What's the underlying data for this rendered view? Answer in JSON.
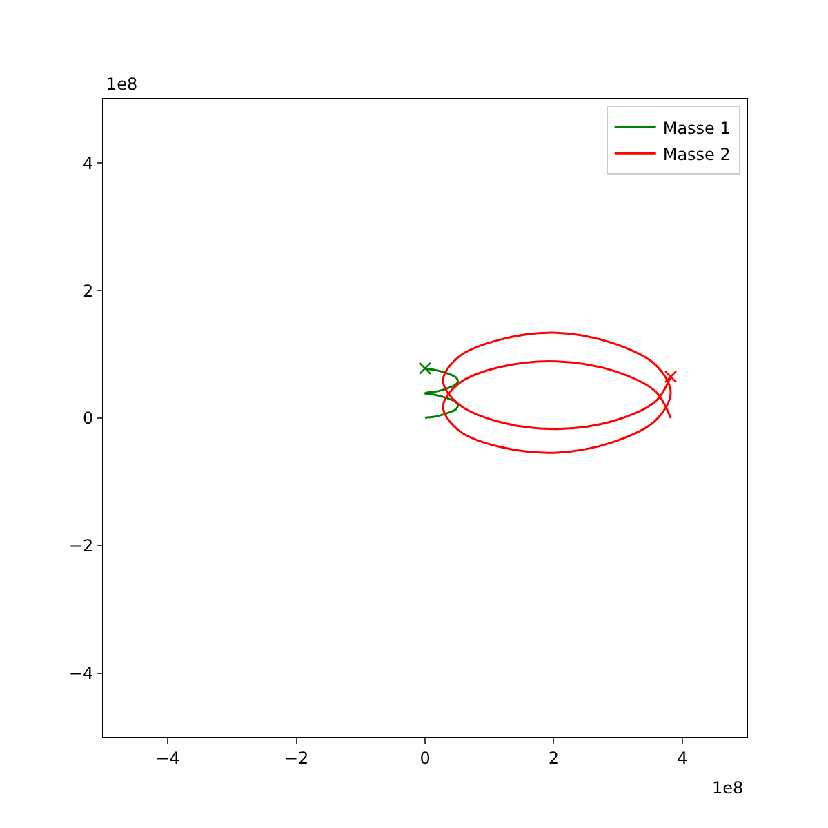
{
  "chart_data": {
    "type": "line",
    "series": [
      {
        "name": "Masse 1",
        "color": "#008000",
        "x": [
          0,
          0.03,
          0.13,
          0.26,
          0.38,
          0.48,
          0.51,
          0.48,
          0.38,
          0.26,
          0.13,
          0.03,
          0,
          0.03,
          0.13,
          0.26,
          0.38,
          0.48,
          0.51,
          0.48,
          0.38,
          0.26,
          0.13,
          0.03,
          0
        ],
        "values": [
          0,
          0.01,
          0.02,
          0.05,
          0.09,
          0.14,
          0.2,
          0.25,
          0.3,
          0.34,
          0.37,
          0.38,
          0.39,
          0.4,
          0.41,
          0.44,
          0.48,
          0.53,
          0.58,
          0.64,
          0.69,
          0.73,
          0.76,
          0.77,
          0.78
        ]
      },
      {
        "name": "Masse 2",
        "color": "#ff0000",
        "x": [
          3.82,
          3.58,
          2.94,
          2.05,
          1.16,
          0.52,
          0.28,
          0.52,
          1.16,
          2.05,
          2.94,
          3.58,
          3.82,
          3.58,
          2.94,
          2.05,
          1.16,
          0.52,
          0.28,
          0.52,
          1.16,
          2.05,
          2.94,
          3.58,
          3.82
        ],
        "values": [
          0,
          0.42,
          0.74,
          0.89,
          0.8,
          0.54,
          0.18,
          -0.19,
          -0.45,
          -0.54,
          -0.37,
          -0.04,
          0.4,
          0.84,
          1.17,
          1.34,
          1.23,
          0.96,
          0.59,
          0.22,
          -0.06,
          -0.17,
          -0.04,
          0.26,
          0.65
        ]
      },
      {
        "type": "scatter",
        "marker": "cross",
        "color": "#008000",
        "x": [
          0
        ],
        "values": [
          0.78
        ]
      },
      {
        "type": "scatter",
        "marker": "cross",
        "color": "#ff0000",
        "x": [
          3.82
        ],
        "values": [
          0.65
        ]
      }
    ],
    "xlim": [
      -5,
      5
    ],
    "ylim": [
      -5,
      5
    ],
    "xticks": [
      {
        "value": -4,
        "label": "−4"
      },
      {
        "value": -2,
        "label": "−2"
      },
      0,
      2,
      4
    ],
    "yticks": [
      {
        "value": -4,
        "label": "−4"
      },
      {
        "value": -2,
        "label": "−2"
      },
      0,
      2,
      4
    ],
    "annotations": [
      "1e8",
      "1e8"
    ],
    "legend": "top right",
    "marker": "none",
    "line_style": "solid"
  }
}
